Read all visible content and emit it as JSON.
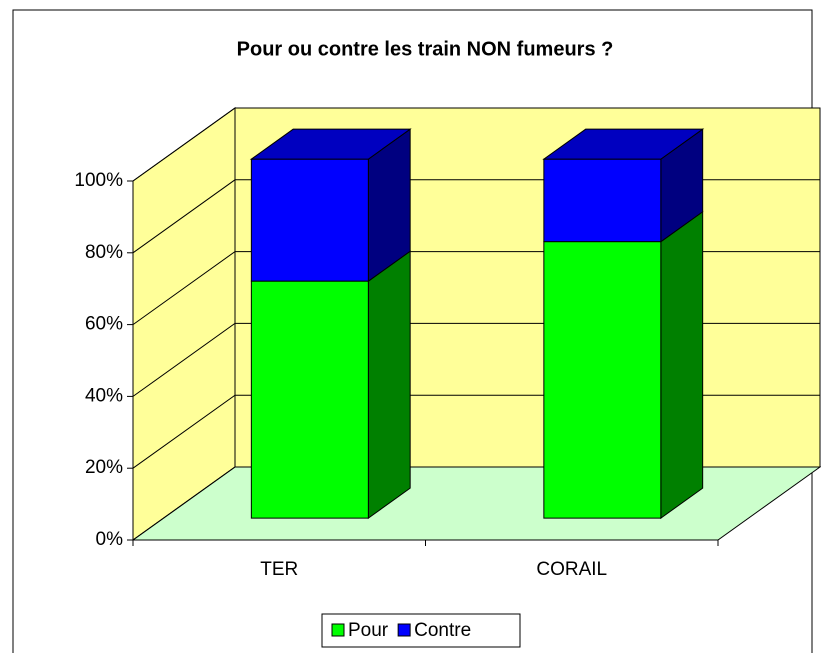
{
  "chart_data": {
    "type": "bar3d_stacked",
    "title": "Pour ou contre les train NON fumeurs ?",
    "categories": [
      "TER",
      "CORAIL"
    ],
    "series": [
      {
        "name": "Pour",
        "color": "#00ff00",
        "side_color": "#008000",
        "values": [
          66,
          77
        ]
      },
      {
        "name": "Contre",
        "color": "#0000ff",
        "side_color": "#000080",
        "top_color": "#0000c0",
        "values": [
          34,
          23
        ]
      }
    ],
    "ylim": [
      0,
      100
    ],
    "yticks": [
      {
        "value": 0,
        "label": "0%"
      },
      {
        "value": 20,
        "label": "20%"
      },
      {
        "value": 40,
        "label": "40%"
      },
      {
        "value": 60,
        "label": "60%"
      },
      {
        "value": 80,
        "label": "80%"
      },
      {
        "value": 100,
        "label": "100%"
      }
    ],
    "grid": true,
    "legend": "bottom"
  }
}
